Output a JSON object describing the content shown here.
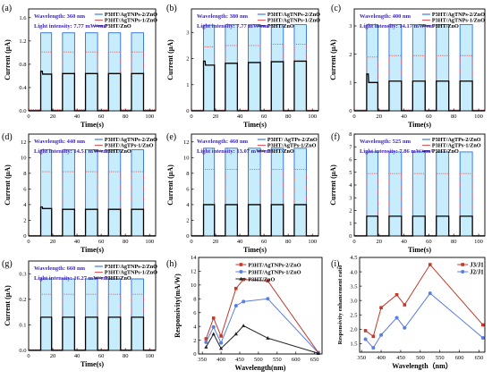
{
  "chart_data": [
    {
      "id": "a",
      "type": "line",
      "label": "(a)",
      "wavelength_text": "Wavelength: 360 nm",
      "intensity_text": "Light intensity: 7.77 mW/cm²",
      "xlabel": "Time(s)",
      "ylabel": "Current (μA)",
      "xlim": [
        0,
        105
      ],
      "ylim": [
        0,
        1.75
      ],
      "xticks": [
        0,
        20,
        40,
        60,
        80,
        100
      ],
      "yticks": [
        0.0,
        0.4,
        0.8,
        1.2,
        1.6
      ],
      "ytick_labels": [
        "0.0",
        "0.4",
        "0.8",
        "1.2",
        "1.6"
      ],
      "on_intervals": [
        [
          10,
          19
        ],
        [
          28,
          38
        ],
        [
          47,
          57
        ],
        [
          66,
          76
        ],
        [
          85,
          95
        ]
      ],
      "series": [
        {
          "name": "P3HT/AgTNPs-2/ZnO",
          "color": "#2a6edb",
          "fill": "#c7ecfb",
          "off": 0.01,
          "on": [
            1.34,
            1.34,
            1.34,
            1.34,
            1.34
          ],
          "spike": null
        },
        {
          "name": "P3HT/AgTNPs-1/ZnO",
          "color": "#e05a5a",
          "dotted": true,
          "off": 0.02,
          "on": [
            1.01,
            1.01,
            1.01,
            1.01,
            1.01
          ],
          "spike": null
        },
        {
          "name": "P3HT/ZnO",
          "color": "#000000",
          "off": 0.0,
          "on": [
            0.63,
            0.64,
            0.64,
            0.64,
            0.64
          ],
          "spike": 0.68
        }
      ]
    },
    {
      "id": "b",
      "type": "line",
      "label": "(b)",
      "wavelength_text": "Wavelength: 380 nm",
      "intensity_text": "Light intensity: 7.77 mW/cm²",
      "xlabel": "Time(s)",
      "ylabel": "Current (μA)",
      "xlim": [
        0,
        105
      ],
      "ylim": [
        0,
        3.9
      ],
      "xticks": [
        0,
        20,
        40,
        60,
        80,
        100
      ],
      "yticks": [
        0,
        1,
        2,
        3
      ],
      "ytick_labels": [
        "0",
        "1",
        "2",
        "3"
      ],
      "on_intervals": [
        [
          10,
          19
        ],
        [
          28,
          38
        ],
        [
          47,
          57
        ],
        [
          66,
          76
        ],
        [
          85,
          95
        ]
      ],
      "series": [
        {
          "name": "P3HT/AgTNPs-2/ZnO",
          "color": "#2a6edb",
          "fill": "#c7ecfb",
          "off": 0.02,
          "on": [
            3.28,
            3.3,
            3.3,
            3.3,
            3.3
          ],
          "spike": null
        },
        {
          "name": "P3HT/AgTNPs-1/ZnO",
          "color": "#e05a5a",
          "dotted": true,
          "off": 0.03,
          "on": [
            2.45,
            2.5,
            2.5,
            2.55,
            2.55
          ],
          "spike": null
        },
        {
          "name": "P3HT/ZnO",
          "color": "#000000",
          "off": 0.0,
          "on": [
            1.75,
            1.82,
            1.85,
            1.88,
            1.9
          ],
          "spike": 1.9
        }
      ]
    },
    {
      "id": "c",
      "type": "line",
      "label": "(c)",
      "wavelength_text": "Wavelength: 400 nm",
      "intensity_text": "Light intensity: 14.17 mW/cm²",
      "xlabel": "Time(s)",
      "ylabel": "Current (μA)",
      "xlim": [
        0,
        105
      ],
      "ylim": [
        0,
        3.6
      ],
      "xticks": [
        0,
        20,
        40,
        60,
        80,
        100
      ],
      "yticks": [
        0,
        1,
        2,
        3
      ],
      "ytick_labels": [
        "0",
        "1",
        "2",
        "3"
      ],
      "on_intervals": [
        [
          10,
          19
        ],
        [
          28,
          38
        ],
        [
          47,
          57
        ],
        [
          66,
          76
        ],
        [
          85,
          95
        ]
      ],
      "series": [
        {
          "name": "P3HT/AgTNPs-2/ZnO",
          "color": "#2a6edb",
          "fill": "#c7ecfb",
          "off": 0.02,
          "on": [
            3.05,
            3.05,
            3.05,
            3.05,
            3.05
          ],
          "spike": null
        },
        {
          "name": "P3HT/AgTNPs-1/ZnO",
          "color": "#e05a5a",
          "dotted": true,
          "off": 0.03,
          "on": [
            1.9,
            1.95,
            1.95,
            1.95,
            1.95
          ],
          "spike": null
        },
        {
          "name": "P3HT/ZnO",
          "color": "#000000",
          "off": 0.0,
          "on": [
            1.0,
            1.05,
            1.05,
            1.05,
            1.05
          ],
          "spike": 1.3
        }
      ]
    },
    {
      "id": "d",
      "type": "line",
      "label": "(d)",
      "wavelength_text": "Wavelength: 440 nm",
      "intensity_text": "Light intensity: 14.51 mW/cm²",
      "xlabel": "Time(s)",
      "ylabel": "Current (μA)",
      "xlim": [
        0,
        105
      ],
      "ylim": [
        0,
        13
      ],
      "xticks": [
        0,
        20,
        40,
        60,
        80,
        100
      ],
      "yticks": [
        0,
        2,
        4,
        6,
        8,
        10,
        12
      ],
      "ytick_labels": [
        "0",
        "2",
        "4",
        "6",
        "8",
        "10",
        "12"
      ],
      "on_intervals": [
        [
          10,
          19
        ],
        [
          28,
          38
        ],
        [
          47,
          57
        ],
        [
          66,
          76
        ],
        [
          85,
          95
        ]
      ],
      "series": [
        {
          "name": "P3HT/AgTNPs-2/ZnO",
          "color": "#2a6edb",
          "fill": "#c7ecfb",
          "off": 0.05,
          "on": [
            11.0,
            11.0,
            11.0,
            11.0,
            11.0
          ],
          "spike": null
        },
        {
          "name": "P3HT/AgTPs-1/ZnO",
          "color": "#e05a5a",
          "dotted": true,
          "off": 0.08,
          "on": [
            8.2,
            8.2,
            8.2,
            8.2,
            8.2
          ],
          "spike": null
        },
        {
          "name": "P3HT/ZnO",
          "color": "#000000",
          "off": 0.0,
          "on": [
            3.5,
            3.4,
            3.4,
            3.4,
            3.4
          ],
          "spike": 3.7
        }
      ]
    },
    {
      "id": "e",
      "type": "line",
      "label": "(e)",
      "wavelength_text": "Wavelength: 460 nm",
      "intensity_text": "Light intensity: 13.07 mW/cm²",
      "xlabel": "Time(s)",
      "ylabel": "Current (μA)",
      "xlim": [
        0,
        105
      ],
      "ylim": [
        0,
        13
      ],
      "xticks": [
        0,
        20,
        40,
        60,
        80,
        100
      ],
      "yticks": [
        0,
        2,
        4,
        6,
        8,
        10,
        12
      ],
      "ytick_labels": [
        "0",
        "2",
        "4",
        "6",
        "8",
        "10",
        "12"
      ],
      "on_intervals": [
        [
          10,
          19
        ],
        [
          28,
          38
        ],
        [
          47,
          57
        ],
        [
          66,
          76
        ],
        [
          85,
          95
        ]
      ],
      "series": [
        {
          "name": "P3HT/ AgTPs-2/ZnO",
          "color": "#2a6edb",
          "fill": "#c7ecfb",
          "off": 0.05,
          "on": [
            11.2,
            11.2,
            11.2,
            11.2,
            11.2
          ],
          "spike": null
        },
        {
          "name": "P3HT/AgTPs-1/ZnO",
          "color": "#e05a5a",
          "dotted": true,
          "off": 0.08,
          "on": [
            8.5,
            8.5,
            8.5,
            8.5,
            8.5
          ],
          "spike": null
        },
        {
          "name": "P3HT/ZnO",
          "color": "#000000",
          "off": 0.0,
          "on": [
            4.0,
            4.0,
            4.0,
            4.0,
            4.0
          ],
          "spike": null
        }
      ]
    },
    {
      "id": "f",
      "type": "line",
      "label": "(f)",
      "wavelength_text": "Wavelength: 525 nm",
      "intensity_text": "Light intensity: 7.86 mW/cm²",
      "xlabel": "Time(s)",
      "ylabel": "Current (μA)",
      "xlim": [
        0,
        105
      ],
      "ylim": [
        0,
        8
      ],
      "xticks": [
        0,
        20,
        40,
        60,
        80,
        100
      ],
      "yticks": [
        0,
        1,
        2,
        3,
        4,
        5,
        6,
        7,
        8
      ],
      "ytick_labels": [
        "0",
        "1",
        "2",
        "3",
        "4",
        "5",
        "6",
        "7",
        "8"
      ],
      "on_intervals": [
        [
          10,
          19
        ],
        [
          28,
          38
        ],
        [
          47,
          57
        ],
        [
          66,
          76
        ],
        [
          85,
          95
        ]
      ],
      "series": [
        {
          "name": "P3HT/AgTPs-2/ZnO",
          "color": "#2a6edb",
          "fill": "#c7ecfb",
          "off": 0.03,
          "on": [
            6.6,
            6.6,
            6.6,
            6.6,
            6.6
          ],
          "spike": null
        },
        {
          "name": "P3HT/AgTPs-1/ZnO",
          "color": "#e05a5a",
          "dotted": true,
          "off": 0.05,
          "on": [
            4.9,
            4.9,
            4.9,
            4.9,
            4.9
          ],
          "spike": null
        },
        {
          "name": "P3HT/ZnO",
          "color": "#000000",
          "off": 0.0,
          "on": [
            1.55,
            1.55,
            1.55,
            1.55,
            1.55
          ],
          "spike": null
        }
      ]
    },
    {
      "id": "g",
      "type": "line",
      "label": "(g)",
      "wavelength_text": "Wavelength: 660 nm",
      "intensity_text": "Light intensity: 16.27 mW/cm²",
      "xlabel": "Time(s)",
      "ylabel": "Current (μA)",
      "xlim": [
        0,
        105
      ],
      "ylim": [
        0,
        0.35
      ],
      "xticks": [
        0,
        20,
        40,
        60,
        80,
        100
      ],
      "yticks": [
        0.0,
        0.1,
        0.2,
        0.3
      ],
      "ytick_labels": [
        "0.0",
        "0.1",
        "0.2",
        "0.3"
      ],
      "on_intervals": [
        [
          10,
          19
        ],
        [
          28,
          38
        ],
        [
          47,
          57
        ],
        [
          66,
          76
        ],
        [
          85,
          95
        ]
      ],
      "series": [
        {
          "name": "P3HT/AgTNPs-2/ZnO",
          "color": "#2a6edb",
          "fill": "#c7ecfb",
          "off": 0.002,
          "on": [
            0.28,
            0.28,
            0.28,
            0.28,
            0.28
          ],
          "spike": null
        },
        {
          "name": "P3HT/AgTNPs-1/ZnO",
          "color": "#e05a5a",
          "dotted": true,
          "off": 0.003,
          "on": [
            0.22,
            0.22,
            0.22,
            0.22,
            0.22
          ],
          "spike": null
        },
        {
          "name": "P3HT/ZnO",
          "color": "#000000",
          "off": 0.0,
          "on": [
            0.13,
            0.13,
            0.13,
            0.13,
            0.13
          ],
          "spike": null
        }
      ]
    },
    {
      "id": "h",
      "type": "line",
      "label": "(h)",
      "xlabel": "Wavelength(nm)",
      "ylabel": "Responsivity(mA/W)",
      "xlim": [
        340,
        670
      ],
      "ylim": [
        0,
        14
      ],
      "xticks": [
        350,
        400,
        450,
        500,
        550,
        600,
        650
      ],
      "yticks": [
        0,
        2,
        4,
        6,
        8,
        10,
        12,
        14
      ],
      "ytick_labels": [
        "0",
        "2",
        "4",
        "6",
        "8",
        "10",
        "12",
        "14"
      ],
      "series": [
        {
          "name": "P3HT/AgTNPs-2/ZnO",
          "color": "#c0392b",
          "marker": "square",
          "x": [
            360,
            380,
            400,
            440,
            460,
            525,
            660
          ],
          "y": [
            2.2,
            5.2,
            2.6,
            9.5,
            10.8,
            10.6,
            0.2
          ]
        },
        {
          "name": "P3HT/AgTNPs-1/ZnO",
          "color": "#5b7fe0",
          "marker": "circle",
          "x": [
            360,
            380,
            400,
            440,
            460,
            525,
            660
          ],
          "y": [
            1.7,
            3.9,
            1.6,
            7.0,
            7.6,
            8.0,
            0.15
          ]
        },
        {
          "name": "P3HT/ZnO",
          "color": "#222222",
          "marker": "triangle",
          "x": [
            360,
            380,
            400,
            440,
            460,
            525,
            660
          ],
          "y": [
            1.0,
            2.9,
            0.8,
            2.9,
            4.1,
            2.3,
            0.1
          ]
        }
      ]
    },
    {
      "id": "i",
      "type": "line",
      "label": "(i)",
      "xlabel": "Wavelength（nm）",
      "ylabel": "Responsivity enhancement ratio",
      "xlim": [
        345,
        665
      ],
      "ylim": [
        1.2,
        4.5
      ],
      "xticks": [
        350,
        400,
        450,
        500,
        550,
        600,
        650
      ],
      "yticks": [
        1.5,
        2.0,
        2.5,
        3.0,
        3.5,
        4.0,
        4.5
      ],
      "ytick_labels": [
        "1.5",
        "2.0",
        "2.5",
        "3.0",
        "3.5",
        "4.0",
        "4.5"
      ],
      "series": [
        {
          "name": "J3/J1",
          "color": "#c0392b",
          "marker": "square",
          "x": [
            360,
            380,
            400,
            440,
            460,
            525,
            660
          ],
          "y": [
            1.95,
            1.75,
            2.75,
            3.2,
            2.85,
            4.25,
            2.15
          ]
        },
        {
          "name": "J2/J1",
          "color": "#5b7fe0",
          "marker": "circle",
          "x": [
            360,
            380,
            400,
            440,
            460,
            525,
            660
          ],
          "y": [
            1.65,
            1.35,
            1.8,
            2.4,
            2.05,
            3.25,
            1.7
          ]
        }
      ]
    }
  ]
}
